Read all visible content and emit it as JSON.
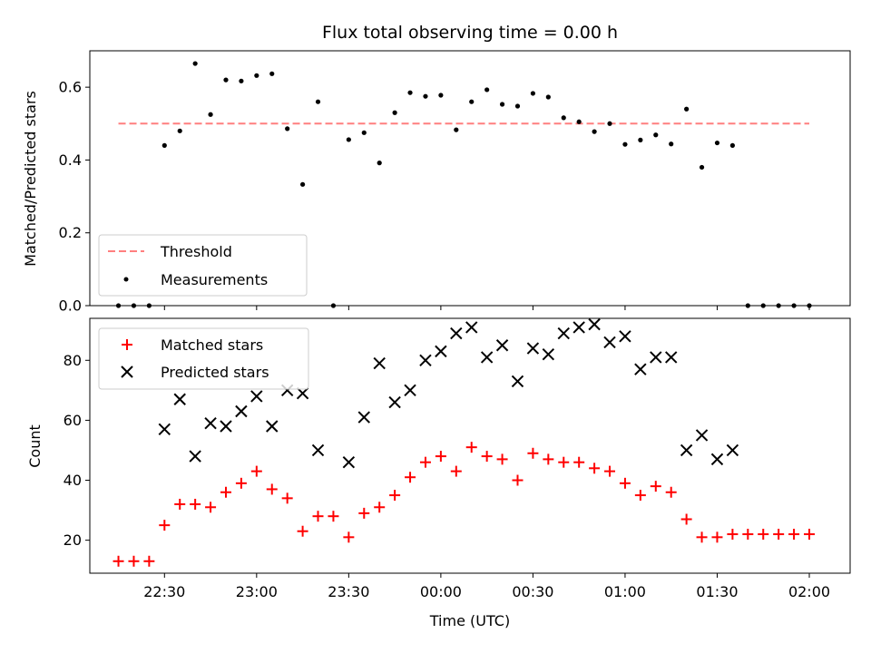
{
  "title": "Flux total observing time = 0.00 h",
  "xlabel": "Time (UTC)",
  "x_ticks": [
    "22:30",
    "23:00",
    "23:30",
    "00:00",
    "00:30",
    "01:00",
    "01:30",
    "02:00"
  ],
  "colors": {
    "threshold": "#ff7f7f",
    "measurement": "#000000",
    "matched": "#ff0000",
    "predicted": "#000000"
  },
  "chart_data": [
    {
      "type": "scatter",
      "ylabel": "Matched/Predicted stars",
      "ylim": [
        0,
        0.7
      ],
      "y_ticks": [
        "0.0",
        "0.2",
        "0.4",
        "0.6"
      ],
      "legend_placement": "lower-left",
      "threshold": {
        "name": "Threshold",
        "value": 0.5,
        "x_range": [
          "22:15",
          "02:00"
        ]
      },
      "series": [
        {
          "name": "Measurements",
          "points": [
            {
              "x": "22:15",
              "y": 0.0
            },
            {
              "x": "22:20",
              "y": 0.0
            },
            {
              "x": "22:25",
              "y": 0.0
            },
            {
              "x": "22:30",
              "y": 0.44
            },
            {
              "x": "22:35",
              "y": 0.48
            },
            {
              "x": "22:40",
              "y": 0.665
            },
            {
              "x": "22:45",
              "y": 0.525
            },
            {
              "x": "22:50",
              "y": 0.62
            },
            {
              "x": "22:55",
              "y": 0.617
            },
            {
              "x": "23:00",
              "y": 0.632
            },
            {
              "x": "23:05",
              "y": 0.637
            },
            {
              "x": "23:10",
              "y": 0.486
            },
            {
              "x": "23:15",
              "y": 0.333
            },
            {
              "x": "23:20",
              "y": 0.56
            },
            {
              "x": "23:25",
              "y": 0.0
            },
            {
              "x": "23:30",
              "y": 0.456
            },
            {
              "x": "23:35",
              "y": 0.475
            },
            {
              "x": "23:40",
              "y": 0.392
            },
            {
              "x": "23:45",
              "y": 0.53
            },
            {
              "x": "23:50",
              "y": 0.585
            },
            {
              "x": "23:55",
              "y": 0.575
            },
            {
              "x": "00:00",
              "y": 0.578
            },
            {
              "x": "00:05",
              "y": 0.483
            },
            {
              "x": "00:10",
              "y": 0.56
            },
            {
              "x": "00:15",
              "y": 0.593
            },
            {
              "x": "00:20",
              "y": 0.553
            },
            {
              "x": "00:25",
              "y": 0.548
            },
            {
              "x": "00:30",
              "y": 0.583
            },
            {
              "x": "00:35",
              "y": 0.573
            },
            {
              "x": "00:40",
              "y": 0.516
            },
            {
              "x": "00:45",
              "y": 0.505
            },
            {
              "x": "00:50",
              "y": 0.478
            },
            {
              "x": "00:55",
              "y": 0.5
            },
            {
              "x": "01:00",
              "y": 0.443
            },
            {
              "x": "01:05",
              "y": 0.455
            },
            {
              "x": "01:10",
              "y": 0.469
            },
            {
              "x": "01:15",
              "y": 0.444
            },
            {
              "x": "01:20",
              "y": 0.54
            },
            {
              "x": "01:25",
              "y": 0.38
            },
            {
              "x": "01:30",
              "y": 0.447
            },
            {
              "x": "01:35",
              "y": 0.44
            },
            {
              "x": "01:40",
              "y": 0.0
            },
            {
              "x": "01:45",
              "y": 0.0
            },
            {
              "x": "01:50",
              "y": 0.0
            },
            {
              "x": "01:55",
              "y": 0.0
            },
            {
              "x": "02:00",
              "y": 0.0
            }
          ]
        }
      ]
    },
    {
      "type": "scatter",
      "ylabel": "Count",
      "ylim": [
        9,
        94
      ],
      "y_ticks": [
        "20",
        "40",
        "60",
        "80"
      ],
      "legend_placement": "upper-left",
      "series": [
        {
          "name": "Matched stars",
          "marker": "plus",
          "points": [
            {
              "x": "22:15",
              "y": 13
            },
            {
              "x": "22:20",
              "y": 13
            },
            {
              "x": "22:25",
              "y": 13
            },
            {
              "x": "22:30",
              "y": 25
            },
            {
              "x": "22:35",
              "y": 32
            },
            {
              "x": "22:40",
              "y": 32
            },
            {
              "x": "22:45",
              "y": 31
            },
            {
              "x": "22:50",
              "y": 36
            },
            {
              "x": "22:55",
              "y": 39
            },
            {
              "x": "23:00",
              "y": 43
            },
            {
              "x": "23:05",
              "y": 37
            },
            {
              "x": "23:10",
              "y": 34
            },
            {
              "x": "23:15",
              "y": 23
            },
            {
              "x": "23:20",
              "y": 28
            },
            {
              "x": "23:25",
              "y": 28
            },
            {
              "x": "23:30",
              "y": 21
            },
            {
              "x": "23:35",
              "y": 29
            },
            {
              "x": "23:40",
              "y": 31
            },
            {
              "x": "23:45",
              "y": 35
            },
            {
              "x": "23:50",
              "y": 41
            },
            {
              "x": "23:55",
              "y": 46
            },
            {
              "x": "00:00",
              "y": 48
            },
            {
              "x": "00:05",
              "y": 43
            },
            {
              "x": "00:10",
              "y": 51
            },
            {
              "x": "00:15",
              "y": 48
            },
            {
              "x": "00:20",
              "y": 47
            },
            {
              "x": "00:25",
              "y": 40
            },
            {
              "x": "00:30",
              "y": 49
            },
            {
              "x": "00:35",
              "y": 47
            },
            {
              "x": "00:40",
              "y": 46
            },
            {
              "x": "00:45",
              "y": 46
            },
            {
              "x": "00:50",
              "y": 44
            },
            {
              "x": "00:55",
              "y": 43
            },
            {
              "x": "01:00",
              "y": 39
            },
            {
              "x": "01:05",
              "y": 35
            },
            {
              "x": "01:10",
              "y": 38
            },
            {
              "x": "01:15",
              "y": 36
            },
            {
              "x": "01:20",
              "y": 27
            },
            {
              "x": "01:25",
              "y": 21
            },
            {
              "x": "01:30",
              "y": 21
            },
            {
              "x": "01:35",
              "y": 22
            },
            {
              "x": "01:40",
              "y": 22
            },
            {
              "x": "01:45",
              "y": 22
            },
            {
              "x": "01:50",
              "y": 22
            },
            {
              "x": "01:55",
              "y": 22
            },
            {
              "x": "02:00",
              "y": 22
            }
          ]
        },
        {
          "name": "Predicted stars",
          "marker": "x",
          "points": [
            {
              "x": "22:30",
              "y": 57
            },
            {
              "x": "22:35",
              "y": 67
            },
            {
              "x": "22:40",
              "y": 48
            },
            {
              "x": "22:45",
              "y": 59
            },
            {
              "x": "22:50",
              "y": 58
            },
            {
              "x": "22:55",
              "y": 63
            },
            {
              "x": "23:00",
              "y": 68
            },
            {
              "x": "23:05",
              "y": 58
            },
            {
              "x": "23:10",
              "y": 70
            },
            {
              "x": "23:15",
              "y": 69
            },
            {
              "x": "23:20",
              "y": 50
            },
            {
              "x": "23:30",
              "y": 46
            },
            {
              "x": "23:35",
              "y": 61
            },
            {
              "x": "23:40",
              "y": 79
            },
            {
              "x": "23:45",
              "y": 66
            },
            {
              "x": "23:50",
              "y": 70
            },
            {
              "x": "23:55",
              "y": 80
            },
            {
              "x": "00:00",
              "y": 83
            },
            {
              "x": "00:05",
              "y": 89
            },
            {
              "x": "00:10",
              "y": 91
            },
            {
              "x": "00:15",
              "y": 81
            },
            {
              "x": "00:20",
              "y": 85
            },
            {
              "x": "00:25",
              "y": 73
            },
            {
              "x": "00:30",
              "y": 84
            },
            {
              "x": "00:35",
              "y": 82
            },
            {
              "x": "00:40",
              "y": 89
            },
            {
              "x": "00:45",
              "y": 91
            },
            {
              "x": "00:50",
              "y": 92
            },
            {
              "x": "00:55",
              "y": 86
            },
            {
              "x": "01:00",
              "y": 88
            },
            {
              "x": "01:05",
              "y": 77
            },
            {
              "x": "01:10",
              "y": 81
            },
            {
              "x": "01:15",
              "y": 81
            },
            {
              "x": "01:20",
              "y": 50
            },
            {
              "x": "01:25",
              "y": 55
            },
            {
              "x": "01:30",
              "y": 47
            },
            {
              "x": "01:35",
              "y": 50
            }
          ]
        }
      ]
    }
  ]
}
